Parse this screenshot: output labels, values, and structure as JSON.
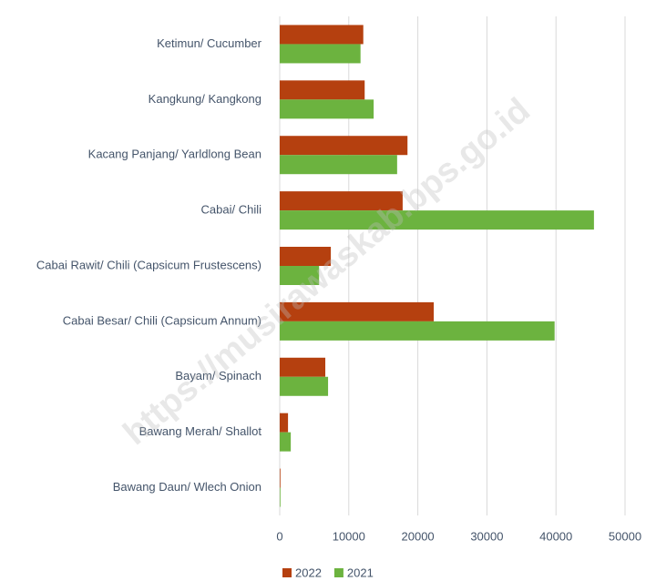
{
  "chart_data": {
    "type": "bar",
    "orientation": "horizontal",
    "categories": [
      "Ketimun/ Cucumber",
      "Kangkung/ Kangkong",
      "Kacang Panjang/ Yarldlong Bean",
      "Cabai/ Chili",
      "Cabai Rawit/ Chili (Capsicum Frustescens)",
      "Cabai Besar/ Chili (Capsicum Annum)",
      "Bayam/ Spinach",
      "Bawang Merah/ Shallot",
      "Bawang Daun/ Wlech Onion"
    ],
    "series": [
      {
        "name": "2022",
        "color": "#b5400f",
        "values": [
          12100,
          12300,
          18500,
          17800,
          7400,
          22300,
          6600,
          1200,
          100
        ]
      },
      {
        "name": "2021",
        "color": "#6cb33f",
        "values": [
          11700,
          13600,
          17000,
          45500,
          5700,
          39800,
          7000,
          1600,
          100
        ]
      }
    ],
    "xlim": [
      0,
      50000
    ],
    "xticks": [
      0,
      10000,
      20000,
      30000,
      40000,
      50000
    ],
    "grid": true,
    "legend": "bottom",
    "watermark": "https://musirawaskab.bps.go.id"
  }
}
